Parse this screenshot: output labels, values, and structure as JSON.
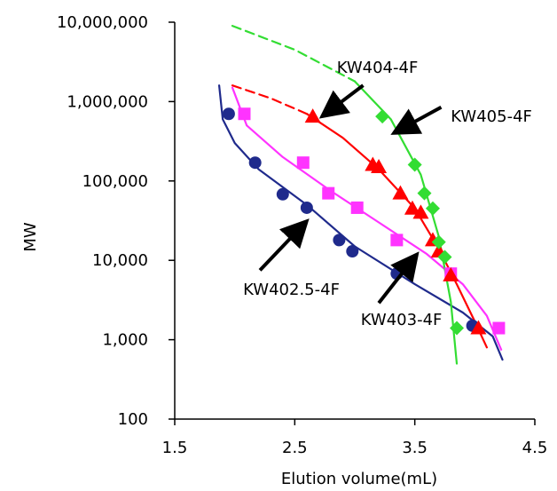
{
  "chart_data": {
    "type": "scatter",
    "title": "",
    "xlabel": "Elution volume(mL)",
    "ylabel": "MW",
    "xlim": [
      1.5,
      4.5
    ],
    "ylim": [
      100,
      10000000
    ],
    "yscale": "log",
    "grid": false,
    "x_ticks": [
      1.5,
      2.5,
      3.5,
      4.5
    ],
    "x_tick_labels": [
      "1.5",
      "2.5",
      "3.5",
      "4.5"
    ],
    "y_ticks": [
      100,
      1000,
      10000,
      100000,
      1000000,
      10000000
    ],
    "y_tick_labels": [
      "100",
      "1,000",
      "10,000",
      "100,000",
      "1,000,000",
      "10,000,000"
    ],
    "series": [
      {
        "name": "KW402.5-4F",
        "color": "#1f2a8c",
        "marker": "circle",
        "points": [
          {
            "x": 1.95,
            "y": 700000
          },
          {
            "x": 2.17,
            "y": 170000
          },
          {
            "x": 2.4,
            "y": 68000
          },
          {
            "x": 2.6,
            "y": 46000
          },
          {
            "x": 2.87,
            "y": 18000
          },
          {
            "x": 2.98,
            "y": 13000
          },
          {
            "x": 3.35,
            "y": 6800
          },
          {
            "x": 3.98,
            "y": 1500
          }
        ],
        "curve": [
          {
            "x": 1.87,
            "y": 1600000
          },
          {
            "x": 1.9,
            "y": 600000
          },
          {
            "x": 2.0,
            "y": 300000
          },
          {
            "x": 2.2,
            "y": 140000
          },
          {
            "x": 2.6,
            "y": 50000
          },
          {
            "x": 3.0,
            "y": 15000
          },
          {
            "x": 3.5,
            "y": 5000
          },
          {
            "x": 3.9,
            "y": 2200
          },
          {
            "x": 4.15,
            "y": 1100
          },
          {
            "x": 4.23,
            "y": 560
          }
        ]
      },
      {
        "name": "KW403-4F",
        "color": "#ff33ff",
        "marker": "square",
        "points": [
          {
            "x": 2.08,
            "y": 700000
          },
          {
            "x": 2.57,
            "y": 170000
          },
          {
            "x": 2.78,
            "y": 70000
          },
          {
            "x": 3.02,
            "y": 46000
          },
          {
            "x": 3.35,
            "y": 18000
          },
          {
            "x": 3.8,
            "y": 6800
          },
          {
            "x": 4.2,
            "y": 1400
          }
        ],
        "curve": [
          {
            "x": 1.98,
            "y": 1500000
          },
          {
            "x": 2.1,
            "y": 500000
          },
          {
            "x": 2.4,
            "y": 200000
          },
          {
            "x": 2.8,
            "y": 75000
          },
          {
            "x": 3.2,
            "y": 30000
          },
          {
            "x": 3.6,
            "y": 12000
          },
          {
            "x": 3.9,
            "y": 5000
          },
          {
            "x": 4.1,
            "y": 2000
          },
          {
            "x": 4.22,
            "y": 750
          }
        ]
      },
      {
        "name": "KW404-4F",
        "color": "#ff0000",
        "marker": "triangle",
        "points": [
          {
            "x": 2.65,
            "y": 650000
          },
          {
            "x": 3.15,
            "y": 160000
          },
          {
            "x": 3.2,
            "y": 150000
          },
          {
            "x": 3.38,
            "y": 70000
          },
          {
            "x": 3.48,
            "y": 45000
          },
          {
            "x": 3.55,
            "y": 40000
          },
          {
            "x": 3.65,
            "y": 18000
          },
          {
            "x": 3.7,
            "y": 13000
          },
          {
            "x": 3.8,
            "y": 6500
          },
          {
            "x": 4.03,
            "y": 1400
          }
        ],
        "curve": [
          {
            "x": 1.98,
            "y": 1600000,
            "dashed": true
          },
          {
            "x": 2.3,
            "y": 1100000,
            "dashed": true
          },
          {
            "x": 2.6,
            "y": 700000
          },
          {
            "x": 2.9,
            "y": 350000
          },
          {
            "x": 3.2,
            "y": 140000
          },
          {
            "x": 3.5,
            "y": 45000
          },
          {
            "x": 3.7,
            "y": 14000
          },
          {
            "x": 3.85,
            "y": 5000
          },
          {
            "x": 4.0,
            "y": 1700
          },
          {
            "x": 4.1,
            "y": 800
          }
        ]
      },
      {
        "name": "KW405-4F",
        "color": "#33dd33",
        "marker": "diamond",
        "points": [
          {
            "x": 3.23,
            "y": 650000
          },
          {
            "x": 3.5,
            "y": 160000
          },
          {
            "x": 3.58,
            "y": 70000
          },
          {
            "x": 3.65,
            "y": 45000
          },
          {
            "x": 3.7,
            "y": 17000
          },
          {
            "x": 3.75,
            "y": 11000
          },
          {
            "x": 3.85,
            "y": 1400
          }
        ],
        "curve": [
          {
            "x": 1.98,
            "y": 9000000,
            "dashed": true
          },
          {
            "x": 2.5,
            "y": 4500000,
            "dashed": true
          },
          {
            "x": 3.0,
            "y": 1800000
          },
          {
            "x": 3.3,
            "y": 600000
          },
          {
            "x": 3.55,
            "y": 120000
          },
          {
            "x": 3.7,
            "y": 20000
          },
          {
            "x": 3.8,
            "y": 3000
          },
          {
            "x": 3.85,
            "y": 500
          }
        ]
      }
    ],
    "annotations": [
      {
        "text": "KW404-4F",
        "label_x": 2.85,
        "label_y": 2700000,
        "arrow_from": {
          "x": 3.07,
          "y": 1600000
        },
        "arrow_to": {
          "x": 2.75,
          "y": 690000
        }
      },
      {
        "text": "KW405-4F",
        "label_x": 3.8,
        "label_y": 650000,
        "arrow_from": {
          "x": 3.72,
          "y": 850000
        },
        "arrow_to": {
          "x": 3.35,
          "y": 420000
        }
      },
      {
        "text": "KW402.5-4F",
        "label_x": 2.07,
        "label_y": 4300,
        "arrow_from": {
          "x": 2.21,
          "y": 7500
        },
        "arrow_to": {
          "x": 2.58,
          "y": 29000
        }
      },
      {
        "text": "KW403-4F",
        "label_x": 3.05,
        "label_y": 1800,
        "arrow_from": {
          "x": 3.2,
          "y": 2900
        },
        "arrow_to": {
          "x": 3.5,
          "y": 11000
        }
      }
    ]
  }
}
